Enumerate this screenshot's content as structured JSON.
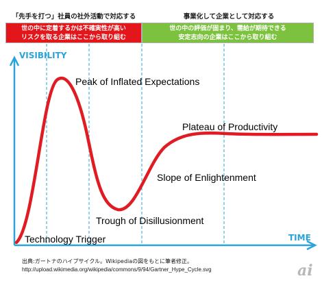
{
  "header": {
    "left": "「先手を打つ」社員の社外活動で対応する",
    "right": "事業化して企業として対応する"
  },
  "bands": {
    "left_line1": "世の中に定着するかは不確実性が高い",
    "left_line2": "リスクを取る企業はここから取り組む",
    "left_color": "#e3161b",
    "right_line1": "世の中の評価が固まり、需給が期待できる",
    "right_line2": "安定志向の企業はここから取り組む",
    "right_color": "#7cc23e"
  },
  "axes": {
    "y_label": "VISIBILITY",
    "x_label": "TIME",
    "color": "#2aa3d9"
  },
  "curve_color": "#e11b22",
  "phases": {
    "trigger": "Technology Trigger",
    "peak": "Peak of Inflated Expectations",
    "trough": "Trough of Disillusionment",
    "slope": "Slope of Enlightenment",
    "plateau": "Plateau of Productivity"
  },
  "footer": {
    "line1": "出典:ガートナのハイプサイクル。Wikipediaの図をもとに筆者修正。",
    "line2": "http://upload.wikimedia.org/wikipedia/commons/9/94/Gartner_Hype_Cycle.svg",
    "logo": "ai"
  }
}
